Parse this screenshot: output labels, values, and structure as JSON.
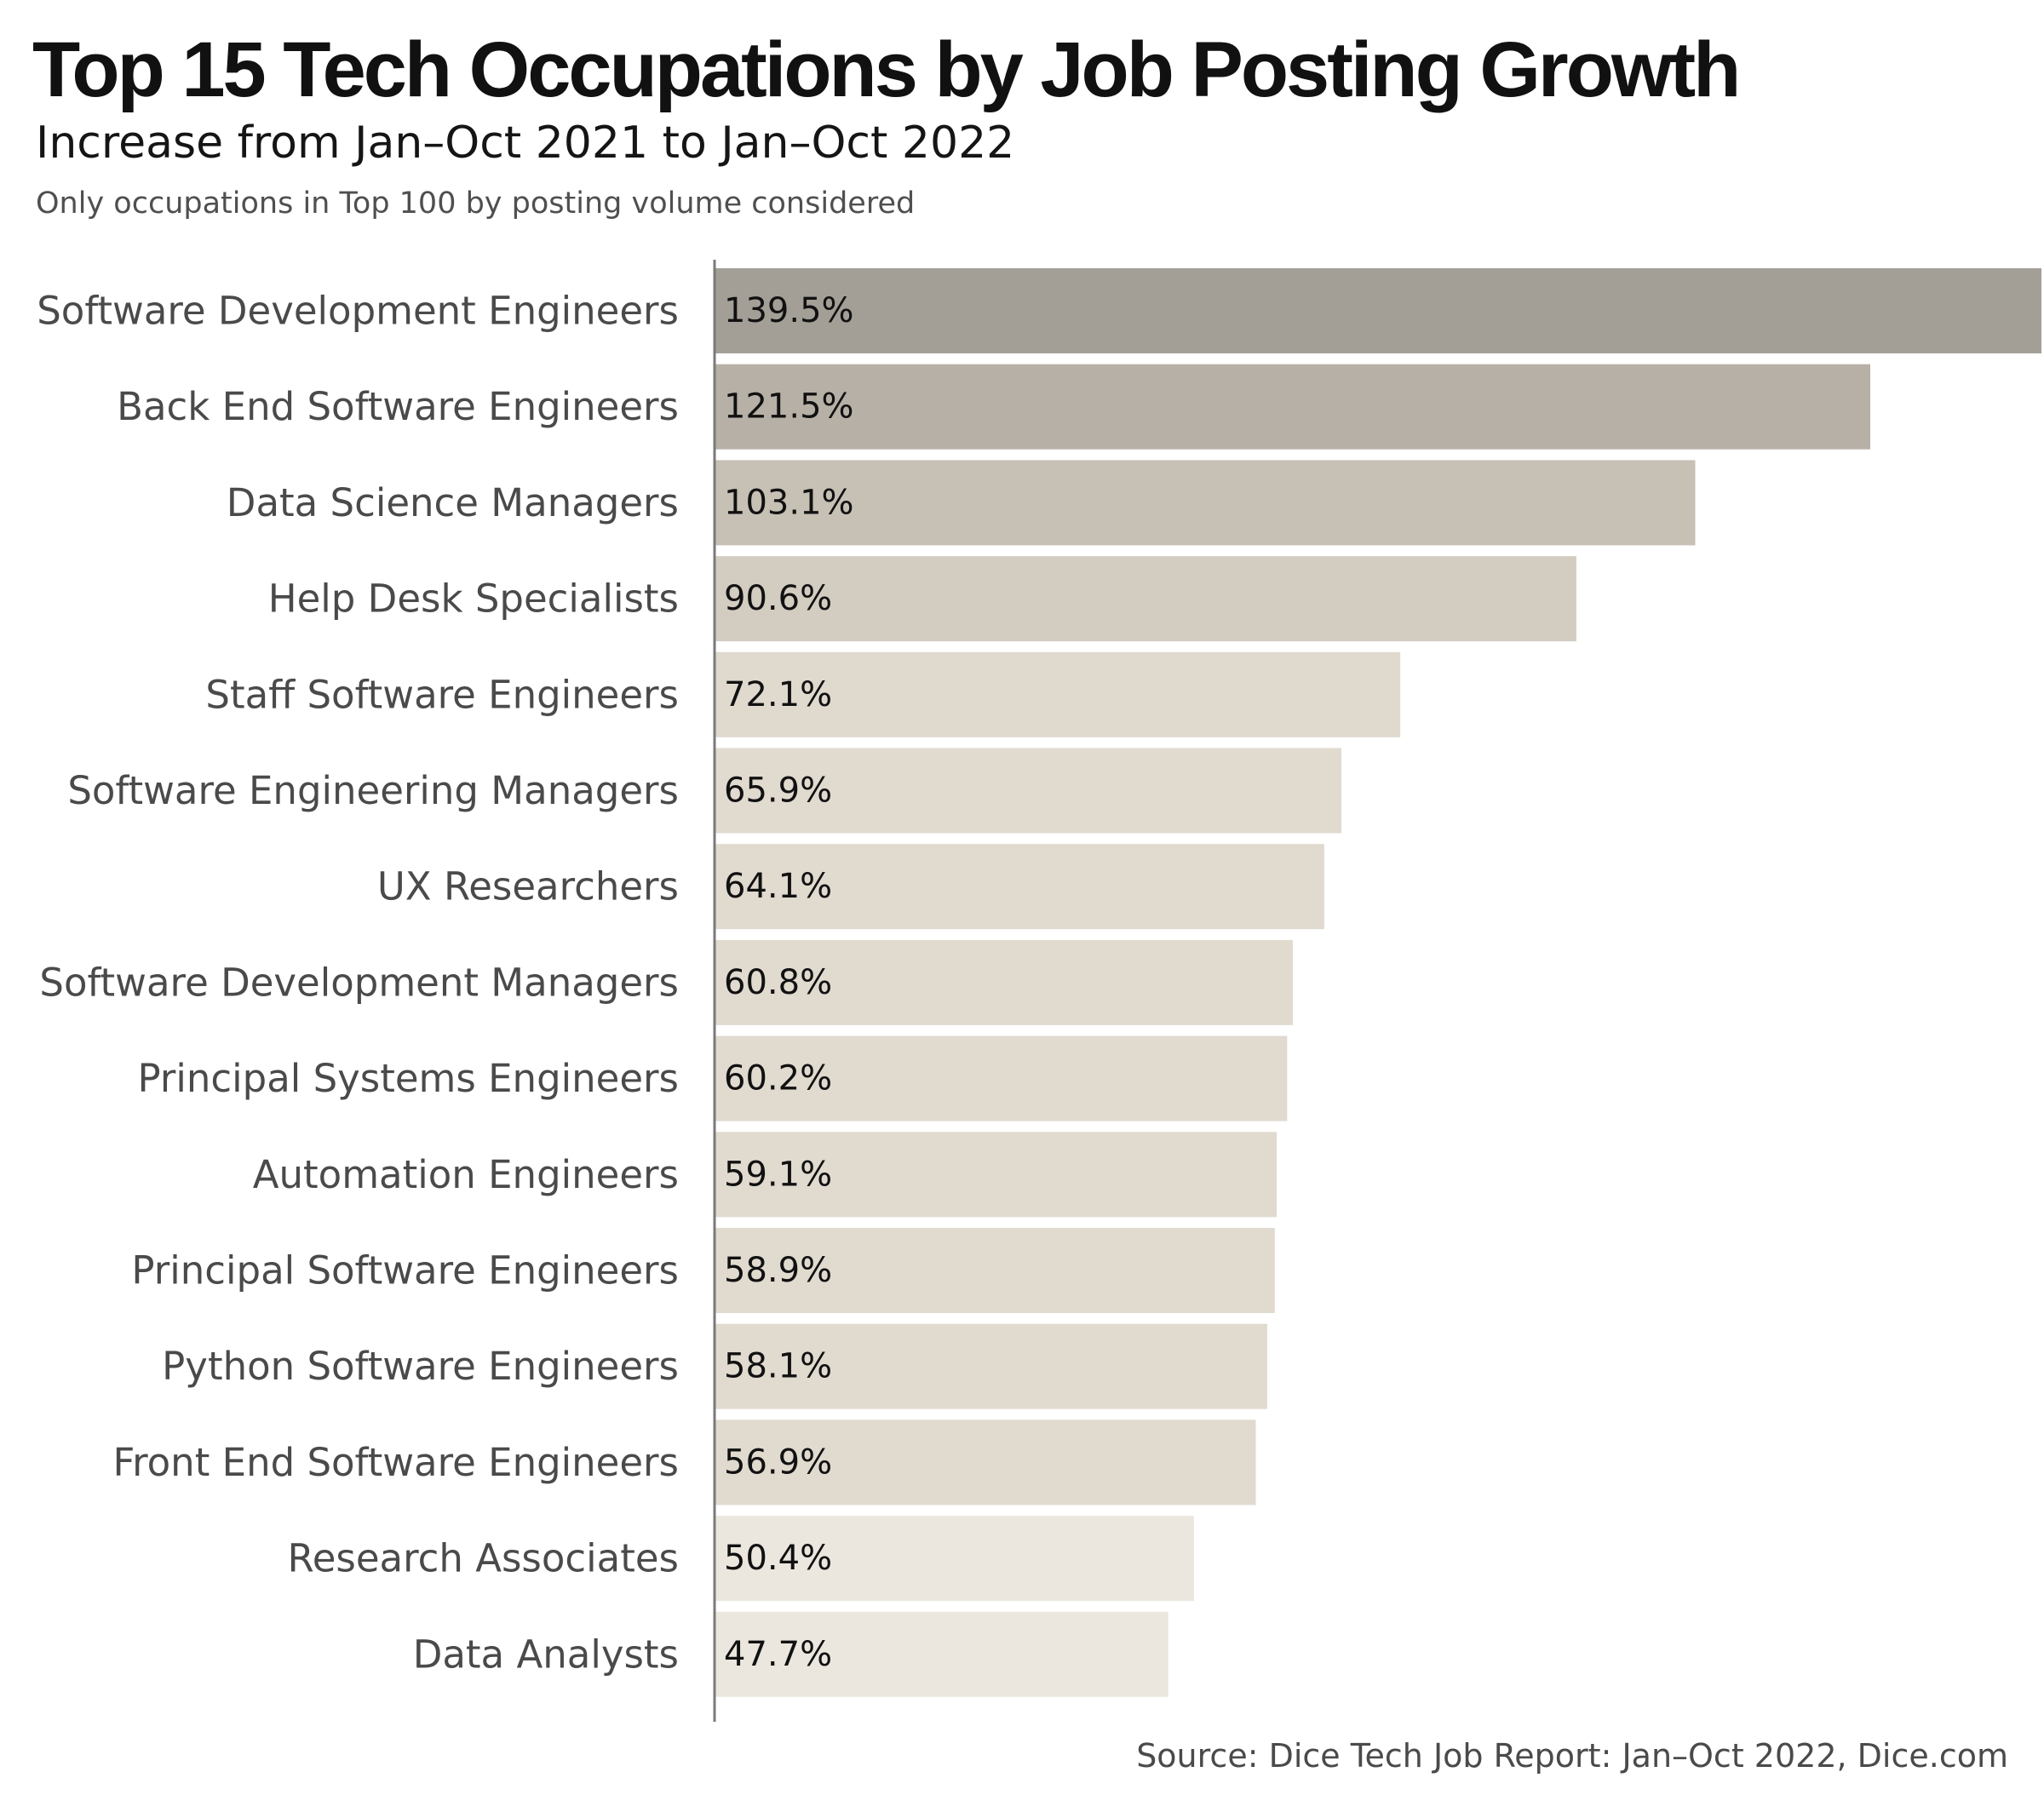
{
  "header": {
    "title": "Top 15 Tech Occupations by Job Posting Growth",
    "subtitle": "Increase from Jan–Oct 2021 to Jan–Oct 2022",
    "note": "Only occupations in Top 100 by posting volume considered"
  },
  "footer": {
    "source": "Source: Dice Tech Job Report: Jan–Oct 2022, Dice.com"
  },
  "chart_data": {
    "type": "bar",
    "orientation": "horizontal",
    "title": "Top 15 Tech Occupations by Job Posting Growth",
    "subtitle": "Increase from Jan–Oct 2021 to Jan–Oct 2022",
    "xlabel": "",
    "ylabel": "",
    "unit": "%",
    "xlim": [
      0,
      139.5
    ],
    "grid": false,
    "legend": "none",
    "categories": [
      "Software Development Engineers",
      "Back End Software Engineers",
      "Data Science Managers",
      "Help Desk Specialists",
      "Staff Software Engineers",
      "Software Engineering Managers",
      "UX Researchers",
      "Software Development Managers",
      "Principal Systems Engineers",
      "Automation Engineers",
      "Principal Software Engineers",
      "Python Software Engineers",
      "Front End Software Engineers",
      "Research Associates",
      "Data Analysts"
    ],
    "values": [
      139.5,
      121.5,
      103.1,
      90.6,
      72.1,
      65.9,
      64.1,
      60.8,
      60.2,
      59.1,
      58.9,
      58.1,
      56.9,
      50.4,
      47.7
    ],
    "value_labels": [
      "139.5%",
      "121.5%",
      "103.1%",
      "90.6%",
      "72.1%",
      "65.9%",
      "64.1%",
      "60.8%",
      "60.2%",
      "59.1%",
      "58.9%",
      "58.1%",
      "56.9%",
      "50.4%",
      "47.7%"
    ],
    "bar_colors": [
      "#a39f97",
      "#b7b0a6",
      "#c6c0b5",
      "#d3ccc1",
      "#dfd9ce",
      "#e0dacf",
      "#e0dacf",
      "#e0dacf",
      "#e0dacf",
      "#e0dacf",
      "#e0dacf",
      "#e0dacf",
      "#e0dacf",
      "#ebe7de",
      "#ebe7de"
    ],
    "axis_color": "#7a7a7a"
  }
}
